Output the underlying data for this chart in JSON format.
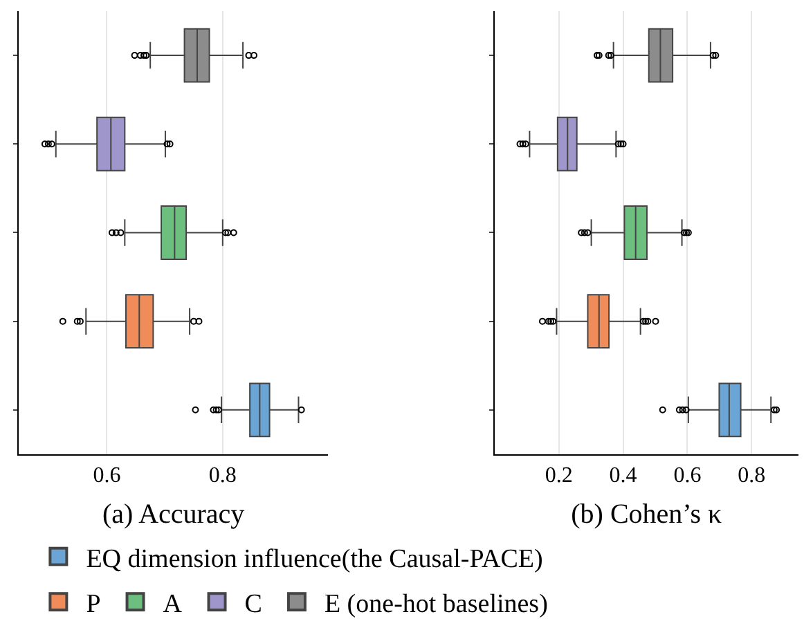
{
  "chart_data": [
    {
      "type": "box",
      "orientation": "horizontal",
      "xlabel": "(a) Accuracy",
      "categories": [
        null,
        null,
        null,
        null,
        null
      ],
      "xlim": [
        0.448,
        0.982
      ],
      "xticks": [
        0.6,
        0.8
      ],
      "grid": "x",
      "tick_labels": "x",
      "legend": "bottom",
      "series": [
        {
          "name": "EQ dimension influence(the Causal-PACE)",
          "color": "#6aa5d6",
          "boxes": [
            null,
            null,
            null,
            null,
            {
              "low": 0.798,
              "q1": 0.847,
              "median": 0.864,
              "q3": 0.881,
              "high": 0.931,
              "outliers": [
                0.753,
                0.784,
                0.789,
                0.793,
                0.936
              ]
            }
          ]
        },
        {
          "name": "P",
          "color": "#f08c5a",
          "boxes": [
            null,
            null,
            null,
            {
              "low": 0.564,
              "q1": 0.633,
              "median": 0.656,
              "q3": 0.68,
              "high": 0.743,
              "outliers": [
                0.524,
                0.549,
                0.554,
                0.75,
                0.759
              ]
            },
            null
          ]
        },
        {
          "name": "A",
          "color": "#6dbf7f",
          "boxes": [
            null,
            null,
            {
              "low": 0.631,
              "q1": 0.694,
              "median": 0.717,
              "q3": 0.737,
              "high": 0.8,
              "outliers": [
                0.609,
                0.616,
                0.624,
                0.805,
                0.809,
                0.819
              ]
            },
            null,
            null
          ]
        },
        {
          "name": "C",
          "color": "#9f97cb",
          "boxes": [
            null,
            {
              "low": 0.512,
              "q1": 0.583,
              "median": 0.607,
              "q3": 0.631,
              "high": 0.701,
              "outliers": [
                0.493,
                0.499,
                0.505,
                0.704,
                0.709
              ]
            },
            null,
            null,
            null
          ]
        },
        {
          "name": "E (one-hot baselines)",
          "color": "#8c8c8c",
          "boxes": [
            {
              "low": 0.675,
              "q1": 0.734,
              "median": 0.756,
              "q3": 0.777,
              "high": 0.835,
              "outliers": [
                0.648,
                0.658,
                0.664,
                0.668,
                0.845,
                0.854
              ]
            },
            null,
            null,
            null,
            null
          ]
        }
      ]
    },
    {
      "type": "box",
      "orientation": "horizontal",
      "xlabel": "(b) Cohen’s κ",
      "categories": [
        null,
        null,
        null,
        null,
        null
      ],
      "xlim": [
        0.0,
        0.945
      ],
      "xticks": [
        0.2,
        0.4,
        0.6,
        0.8
      ],
      "grid": "x",
      "tick_labels": "x",
      "series": [
        {
          "color": "#6aa5d6",
          "boxes": [
            null,
            null,
            null,
            null,
            {
              "low": 0.603,
              "q1": 0.699,
              "median": 0.73,
              "q3": 0.766,
              "high": 0.86,
              "outliers": [
                0.523,
                0.575,
                0.585,
                0.596,
                0.87,
                0.877
              ]
            }
          ]
        },
        {
          "color": "#f08c5a",
          "boxes": [
            null,
            null,
            null,
            {
              "low": 0.193,
              "q1": 0.29,
              "median": 0.325,
              "q3": 0.356,
              "high": 0.454,
              "outliers": [
                0.149,
                0.168,
                0.175,
                0.182,
                0.463,
                0.47,
                0.477,
                0.501
              ]
            },
            null
          ]
        },
        {
          "color": "#6dbf7f",
          "boxes": [
            null,
            null,
            {
              "low": 0.301,
              "q1": 0.404,
              "median": 0.439,
              "q3": 0.474,
              "high": 0.583,
              "outliers": [
                0.27,
                0.28,
                0.29,
                0.59,
                0.597,
                0.603
              ]
            },
            null,
            null
          ]
        },
        {
          "color": "#9f97cb",
          "boxes": [
            null,
            {
              "low": 0.109,
              "q1": 0.196,
              "median": 0.227,
              "q3": 0.256,
              "high": 0.378,
              "outliers": [
                0.079,
                0.088,
                0.097,
                0.385,
                0.393,
                0.4
              ]
            },
            null,
            null,
            null
          ]
        },
        {
          "color": "#8c8c8c",
          "boxes": [
            {
              "low": 0.37,
              "q1": 0.48,
              "median": 0.516,
              "q3": 0.554,
              "high": 0.672,
              "outliers": [
                0.319,
                0.325,
                0.355,
                0.362,
                0.68,
                0.688
              ]
            },
            null,
            null,
            null,
            null
          ]
        }
      ]
    }
  ]
}
